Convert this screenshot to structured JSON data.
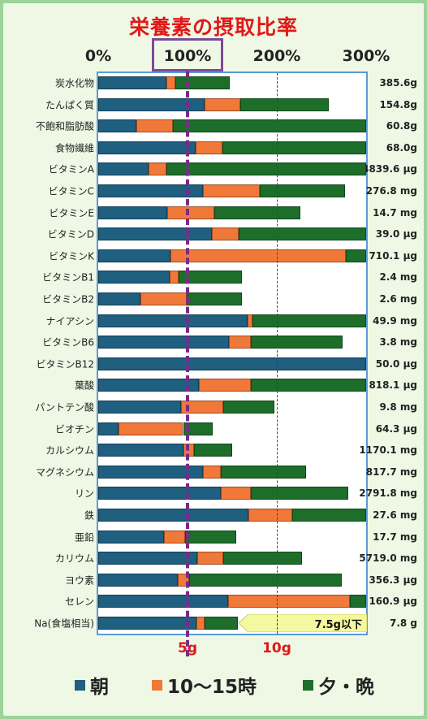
{
  "chart_data": {
    "type": "bar",
    "orientation": "horizontal",
    "stacked": true,
    "title": "栄養素の摂取比率",
    "x_tick_labels": [
      "0%",
      "100%",
      "200%",
      "300%"
    ],
    "xlim": [
      0,
      300
    ],
    "grid": "vertical dashed at 200%",
    "reference_line": "100%",
    "secondary_ticks": [
      "5g",
      "10g"
    ],
    "categories": [
      "炭水化物",
      "たんぱく質",
      "不飽和脂肪酸",
      "食物繊維",
      "ビタミンA",
      "ビタミンC",
      "ビタミンE",
      "ビタミンD",
      "ビタミンK",
      "ビタミンB1",
      "ビタミンB2",
      "ナイアシン",
      "ビタミンB6",
      "ビタミンB12",
      "葉酸",
      "パントテン酸",
      "ビオチン",
      "カルシウム",
      "マグネシウム",
      "リン",
      "鉄",
      "亜鉛",
      "カリウム",
      "ヨウ素",
      "セレン",
      "Na(食塩相当)"
    ],
    "totals": [
      "385.6g",
      "154.8g",
      "60.8g",
      "68.0g",
      "4839.6 μg",
      "276.8 mg",
      "14.7 mg",
      "39.0 μg",
      "710.1 μg",
      "2.4 mg",
      "2.6 mg",
      "49.9 mg",
      "3.8 mg",
      "50.0 μg",
      "818.1 μg",
      "9.8 mg",
      "64.3 μg",
      "1170.1 mg",
      "817.7 mg",
      "2791.8 mg",
      "27.6 mg",
      "17.7 mg",
      "5719.0 mg",
      "356.3 μg",
      "160.9 μg",
      "7.8 g"
    ],
    "series": [
      {
        "name": "朝",
        "color": "#1f5f80",
        "values": [
          76,
          119,
          43,
          109,
          56,
          117,
          77,
          127,
          81,
          80,
          47,
          167,
          146,
          300,
          113,
          93,
          23,
          95,
          117,
          137,
          168,
          74,
          111,
          89,
          145,
          110
        ]
      },
      {
        "name": "10〜15時",
        "color": "#f07838",
        "values": [
          10,
          40,
          41,
          30,
          20,
          64,
          53,
          30,
          196,
          10,
          52,
          6,
          25,
          0,
          58,
          47,
          72,
          12,
          20,
          34,
          49,
          23,
          29,
          13,
          137,
          9
        ]
      },
      {
        "name": "夕・晩",
        "color": "#1d6e2a",
        "values": [
          61,
          99,
          216,
          161,
          224,
          95,
          96,
          143,
          23,
          71,
          62,
          127,
          103,
          0,
          130,
          57,
          33,
          43,
          96,
          109,
          83,
          58,
          88,
          171,
          19,
          37
        ]
      }
    ],
    "annotation": "7.5g以下",
    "annotation_row": "Na(食塩相当)"
  },
  "legend": [
    {
      "label": "朝",
      "color": "#1f5f80"
    },
    {
      "label": "10〜15時",
      "color": "#f07838"
    },
    {
      "label": "夕・晩",
      "color": "#1d6e2a"
    }
  ]
}
